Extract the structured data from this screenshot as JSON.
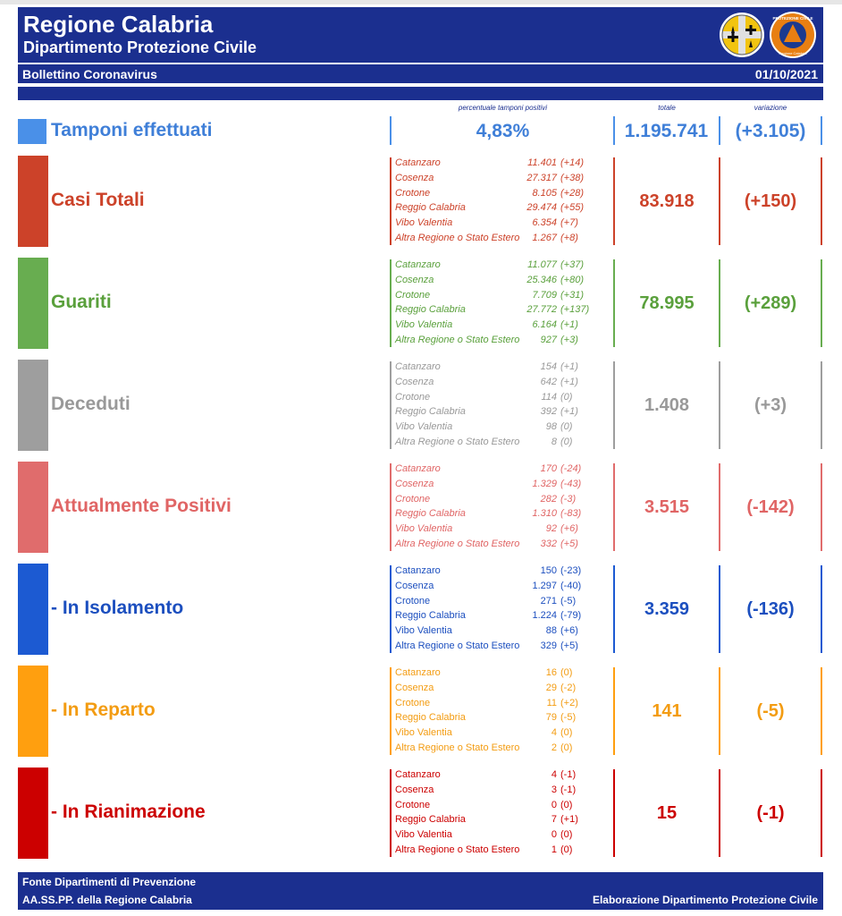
{
  "header": {
    "title": "Regione Calabria",
    "subtitle": "Dipartimento Protezione Civile",
    "bulletin": "Bollettino Coronavirus",
    "date": "01/10/2021",
    "logo_text_top": "PROTEZIONE CIVILE",
    "logo_text_bottom": "Regione Calabria"
  },
  "columns": {
    "perc": "percentuale tamponi positivi",
    "total": "totale",
    "variation": "variazione"
  },
  "tamponi": {
    "label": "Tamponi effettuati",
    "percentage": "4,83%",
    "total": "1.195.741",
    "variation": "(+3.105)",
    "color": "#3f7fd8"
  },
  "provinces": [
    "Catanzaro",
    "Cosenza",
    "Crotone",
    "Reggio Calabria",
    "Vibo Valentia",
    "Altra Regione o Stato Estero"
  ],
  "sections": [
    {
      "label": "Casi Totali",
      "color": "#cc4229",
      "block_color": "#cc4229",
      "values": [
        "11.401",
        "27.317",
        "8.105",
        "29.474",
        "6.354",
        "1.267"
      ],
      "deltas": [
        "(+14)",
        "(+38)",
        "(+28)",
        "(+55)",
        "(+7)",
        "(+8)"
      ],
      "total": "83.918",
      "variation": "(+150)"
    },
    {
      "label": "Guariti",
      "color": "#5aa03c",
      "block_color": "#68ad50",
      "values": [
        "11.077",
        "25.346",
        "7.709",
        "27.772",
        "6.164",
        "927"
      ],
      "deltas": [
        "(+37)",
        "(+80)",
        "(+31)",
        "(+137)",
        "(+1)",
        "(+3)"
      ],
      "total": "78.995",
      "variation": "(+289)"
    },
    {
      "label": "Deceduti",
      "color": "#999999",
      "block_color": "#9e9e9e",
      "values": [
        "154",
        "642",
        "114",
        "392",
        "98",
        "8"
      ],
      "deltas": [
        "(+1)",
        "(+1)",
        "(0)",
        "(+1)",
        "(0)",
        "(0)"
      ],
      "total": "1.408",
      "variation": "(+3)"
    },
    {
      "label": "Attualmente Positivi",
      "color": "#e06565",
      "block_color": "#e06c6c",
      "values": [
        "170",
        "1.329",
        "282",
        "1.310",
        "92",
        "332"
      ],
      "deltas": [
        "(-24)",
        "(-43)",
        "(-3)",
        "(-83)",
        "(+6)",
        "(+5)"
      ],
      "total": "3.515",
      "variation": "(-142)"
    },
    {
      "label": "- In Isolamento",
      "color": "#1c4fbf",
      "block_color": "#1c5ad2",
      "values": [
        "150",
        "1.297",
        "271",
        "1.224",
        "88",
        "329"
      ],
      "deltas": [
        "(-23)",
        "(-40)",
        "(-5)",
        "(-79)",
        "(+6)",
        "(+5)"
      ],
      "total": "3.359",
      "variation": "(-136)"
    },
    {
      "label": "- In Reparto",
      "color": "#f39c12",
      "block_color": "#ff9f0f",
      "values": [
        "16",
        "29",
        "11",
        "79",
        "4",
        "2"
      ],
      "deltas": [
        "(0)",
        "(-2)",
        "(+2)",
        "(-5)",
        "(0)",
        "(0)"
      ],
      "total": "141",
      "variation": "(-5)"
    },
    {
      "label": "- In Rianimazione",
      "color": "#cc0000",
      "block_color": "#cc0000",
      "values": [
        "4",
        "3",
        "0",
        "7",
        "0",
        "1"
      ],
      "deltas": [
        "(-1)",
        "(-1)",
        "(0)",
        "(+1)",
        "(0)",
        "(0)"
      ],
      "total": "15",
      "variation": "(-1)"
    }
  ],
  "footer": {
    "line1": "Fonte Dipartimenti di Prevenzione",
    "line2": "AA.SS.PP.  della Regione Calabria",
    "right": "Elaborazione Dipartimento Protezione Civile"
  }
}
